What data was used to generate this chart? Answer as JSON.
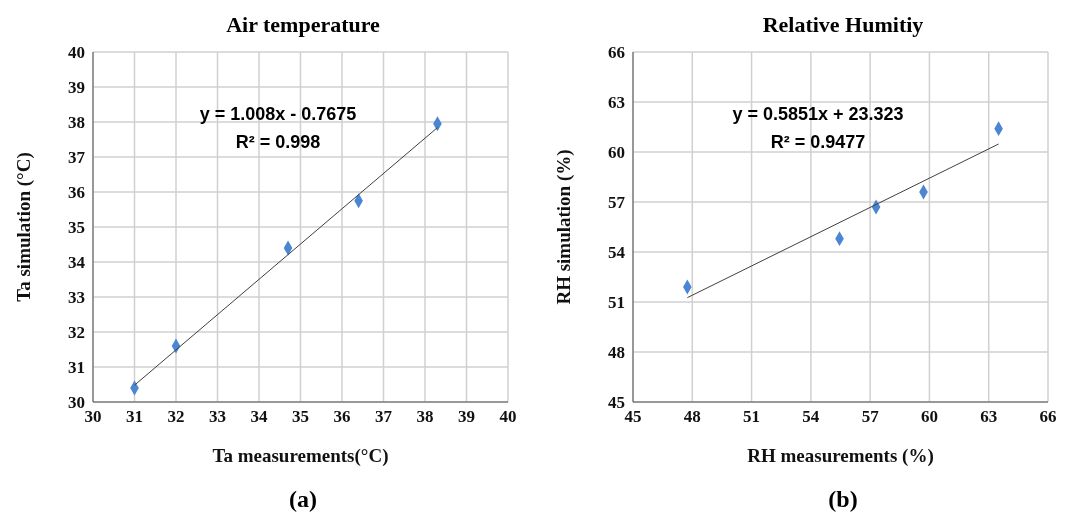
{
  "chart_data": [
    {
      "type": "scatter",
      "title": "Air temperature",
      "xlabel": "Ta measurements(°C)",
      "ylabel": "Ta simulation (°C)",
      "xlim": [
        30,
        40
      ],
      "xticks": [
        30,
        31,
        32,
        33,
        34,
        35,
        36,
        37,
        38,
        39,
        40
      ],
      "ylim": [
        30,
        40
      ],
      "yticks": [
        30,
        31,
        32,
        33,
        34,
        35,
        36,
        37,
        38,
        39,
        40
      ],
      "grid": true,
      "annotations": [
        "y = 1.008x - 0.7675",
        "R² = 0.998",
        "(a)"
      ],
      "series": [
        {
          "color": "#4a86d4",
          "marker": "diamond",
          "x": [
            31.0,
            32.0,
            34.7,
            36.4,
            38.3
          ],
          "values": [
            30.4,
            31.6,
            34.4,
            35.75,
            37.95
          ]
        },
        {
          "type": "line",
          "color": "#404040",
          "x": [
            31.0,
            38.3
          ],
          "values": [
            30.48,
            37.84
          ]
        }
      ]
    },
    {
      "type": "scatter",
      "title": "Relative Humitiy",
      "xlabel": "RH measurements (%)",
      "ylabel": "RH simulation (%)",
      "xlim": [
        45,
        66
      ],
      "xticks": [
        45,
        48,
        51,
        54,
        57,
        60,
        63,
        66
      ],
      "ylim": [
        45,
        66
      ],
      "yticks": [
        45,
        48,
        51,
        54,
        57,
        60,
        63,
        66
      ],
      "grid": true,
      "annotations": [
        "y = 0.5851x + 23.323",
        "R² = 0.9477",
        "(b)"
      ],
      "series": [
        {
          "color": "#4a86d4",
          "marker": "diamond",
          "x": [
            47.75,
            55.45,
            57.3,
            59.7,
            63.5
          ],
          "values": [
            51.9,
            54.8,
            56.7,
            57.6,
            61.4
          ]
        },
        {
          "type": "line",
          "color": "#404040",
          "x": [
            47.75,
            63.5
          ],
          "values": [
            51.26,
            60.48
          ]
        }
      ]
    }
  ]
}
